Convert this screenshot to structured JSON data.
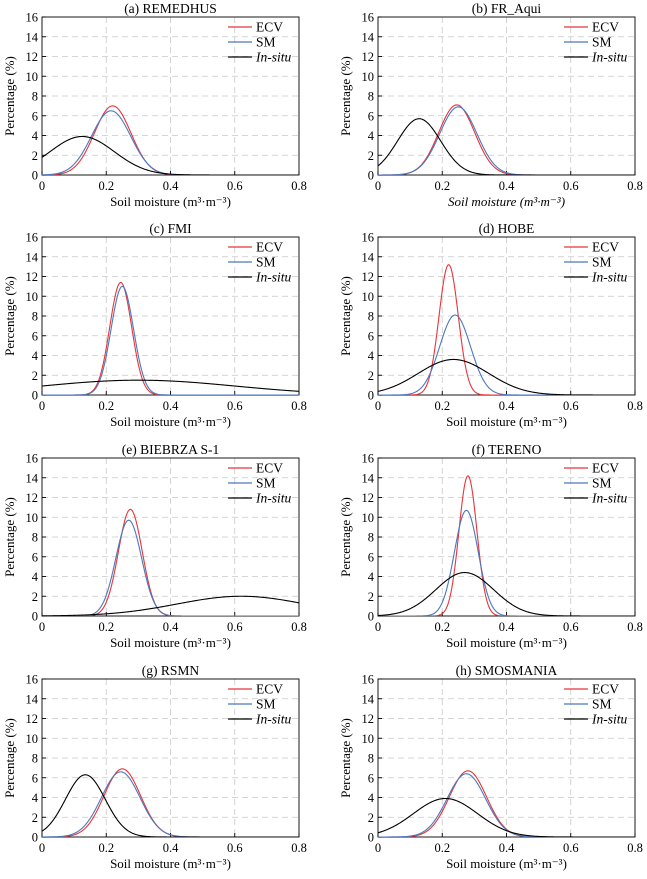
{
  "chart_data": [
    {
      "type": "line",
      "title": "(a) REMEDHUS",
      "xlabel": "Soil moisture (m³·m⁻³)",
      "xlabel_italic": false,
      "ylabel": "Percentage (%)",
      "xlim": [
        0,
        0.8
      ],
      "ylim": [
        0,
        16
      ],
      "xticks": [
        "0",
        "0.2",
        "0.4",
        "0.6",
        "0.8"
      ],
      "yticks": [
        "0",
        "2",
        "4",
        "6",
        "8",
        "10",
        "12",
        "14",
        "16"
      ],
      "grid": true,
      "legend_position": "top-right",
      "series": [
        {
          "name": "ECV",
          "color": "#e8343a",
          "curve": {
            "mean": 0.22,
            "sd": 0.057,
            "peak": 7.0
          }
        },
        {
          "name": "SM",
          "color": "#4a78c0",
          "curve": {
            "mean": 0.215,
            "sd": 0.061,
            "peak": 6.5
          }
        },
        {
          "name": "In-situ",
          "color": "#000000",
          "curve": {
            "mean": 0.125,
            "sd": 0.1,
            "peak": 3.9
          }
        }
      ]
    },
    {
      "type": "line",
      "title": "(b) FR_Aqui",
      "xlabel": "Soil moisture (m³·m⁻³)",
      "xlabel_italic": true,
      "ylabel": "Percentage (%)",
      "xlim": [
        0,
        0.8
      ],
      "ylim": [
        0,
        16
      ],
      "xticks": [
        "0",
        "0.2",
        "0.4",
        "0.6",
        "0.8"
      ],
      "yticks": [
        "0",
        "2",
        "4",
        "6",
        "8",
        "10",
        "12",
        "14",
        "16"
      ],
      "grid": true,
      "legend_position": "top-right",
      "series": [
        {
          "name": "ECV",
          "color": "#e8343a",
          "curve": {
            "mean": 0.245,
            "sd": 0.056,
            "peak": 7.1
          }
        },
        {
          "name": "SM",
          "color": "#4a78c0",
          "curve": {
            "mean": 0.25,
            "sd": 0.058,
            "peak": 6.9
          }
        },
        {
          "name": "In-situ",
          "color": "#000000",
          "curve": {
            "mean": 0.128,
            "sd": 0.067,
            "peak": 5.7
          }
        }
      ]
    },
    {
      "type": "line",
      "title": "(c) FMI",
      "xlabel": "Soil moisture (m³·m⁻³)",
      "xlabel_italic": false,
      "ylabel": "Percentage (%)",
      "xlim": [
        0,
        0.8
      ],
      "ylim": [
        0,
        16
      ],
      "xticks": [
        "0",
        "0.2",
        "0.4",
        "0.6",
        "0.8"
      ],
      "yticks": [
        "0",
        "2",
        "4",
        "6",
        "8",
        "10",
        "12",
        "14",
        "16"
      ],
      "grid": true,
      "legend_position": "top-right",
      "series": [
        {
          "name": "ECV",
          "color": "#e8343a",
          "curve": {
            "mean": 0.245,
            "sd": 0.034,
            "peak": 11.4
          }
        },
        {
          "name": "SM",
          "color": "#4a78c0",
          "curve": {
            "mean": 0.25,
            "sd": 0.035,
            "peak": 11.0
          }
        },
        {
          "name": "In-situ",
          "color": "#000000",
          "curve": {
            "mean": 0.3,
            "sd": 0.3,
            "peak": 1.5
          }
        }
      ]
    },
    {
      "type": "line",
      "title": "(d) HOBE",
      "xlabel": "Soil moisture (m³·m⁻³)",
      "xlabel_italic": false,
      "ylabel": "Percentage (%)",
      "xlim": [
        0,
        0.8
      ],
      "ylim": [
        0,
        16
      ],
      "xticks": [
        "0",
        "0.2",
        "0.4",
        "0.6",
        "0.8"
      ],
      "yticks": [
        "0",
        "2",
        "4",
        "6",
        "8",
        "10",
        "12",
        "14",
        "16"
      ],
      "grid": true,
      "legend_position": "top-right",
      "series": [
        {
          "name": "ECV",
          "color": "#e8343a",
          "curve": {
            "mean": 0.22,
            "sd": 0.03,
            "peak": 13.2
          }
        },
        {
          "name": "SM",
          "color": "#4a78c0",
          "curve": {
            "mean": 0.24,
            "sd": 0.048,
            "peak": 8.1
          }
        },
        {
          "name": "In-situ",
          "color": "#000000",
          "curve": {
            "mean": 0.235,
            "sd": 0.11,
            "peak": 3.6
          }
        }
      ]
    },
    {
      "type": "line",
      "title": "(e) BIEBRZA S-1",
      "xlabel": "Soil moisture (m³·m⁻³)",
      "xlabel_italic": false,
      "ylabel": "Percentage (%)",
      "xlim": [
        0,
        0.8
      ],
      "ylim": [
        0,
        16
      ],
      "xticks": [
        "0",
        "0.2",
        "0.4",
        "0.6",
        "0.8"
      ],
      "yticks": [
        "0",
        "2",
        "4",
        "6",
        "8",
        "10",
        "12",
        "14",
        "16"
      ],
      "grid": true,
      "legend_position": "top-right",
      "series": [
        {
          "name": "ECV",
          "color": "#e8343a",
          "curve": {
            "mean": 0.275,
            "sd": 0.037,
            "peak": 10.8
          }
        },
        {
          "name": "SM",
          "color": "#4a78c0",
          "curve": {
            "mean": 0.27,
            "sd": 0.04,
            "peak": 9.7
          }
        },
        {
          "name": "In-situ",
          "color": "#000000",
          "curve": {
            "mean": 0.62,
            "sd": 0.2,
            "peak": 2.0
          }
        }
      ]
    },
    {
      "type": "line",
      "title": "(f) TERENO",
      "xlabel": "Soil moisture (m³·m⁻³)",
      "xlabel_italic": false,
      "ylabel": "Percentage (%)",
      "xlim": [
        0,
        0.8
      ],
      "ylim": [
        0,
        16
      ],
      "xticks": [
        "0",
        "0.2",
        "0.4",
        "0.6",
        "0.8"
      ],
      "yticks": [
        "0",
        "2",
        "4",
        "6",
        "8",
        "10",
        "12",
        "14",
        "16"
      ],
      "grid": true,
      "legend_position": "top-right",
      "series": [
        {
          "name": "ECV",
          "color": "#e8343a",
          "curve": {
            "mean": 0.28,
            "sd": 0.028,
            "peak": 14.2
          }
        },
        {
          "name": "SM",
          "color": "#4a78c0",
          "curve": {
            "mean": 0.275,
            "sd": 0.037,
            "peak": 10.7
          }
        },
        {
          "name": "In-situ",
          "color": "#000000",
          "curve": {
            "mean": 0.27,
            "sd": 0.09,
            "peak": 4.4
          }
        }
      ]
    },
    {
      "type": "line",
      "title": "(g) RSMN",
      "xlabel": "Soil moisture (m³·m⁻³)",
      "xlabel_italic": false,
      "ylabel": "Percentage (%)",
      "xlim": [
        0,
        0.8
      ],
      "ylim": [
        0,
        16
      ],
      "xticks": [
        "0",
        "0.2",
        "0.4",
        "0.6",
        "0.8"
      ],
      "yticks": [
        "0",
        "2",
        "4",
        "6",
        "8",
        "10",
        "12",
        "14",
        "16"
      ],
      "grid": true,
      "legend_position": "top-right",
      "series": [
        {
          "name": "ECV",
          "color": "#e8343a",
          "curve": {
            "mean": 0.25,
            "sd": 0.057,
            "peak": 6.9
          }
        },
        {
          "name": "SM",
          "color": "#4a78c0",
          "curve": {
            "mean": 0.245,
            "sd": 0.06,
            "peak": 6.6
          }
        },
        {
          "name": "In-situ",
          "color": "#000000",
          "curve": {
            "mean": 0.135,
            "sd": 0.062,
            "peak": 6.3
          }
        }
      ]
    },
    {
      "type": "line",
      "title": "(h) SMOSMANIA",
      "xlabel": "Soil moisture (m³·m⁻³)",
      "xlabel_italic": false,
      "ylabel": "Percentage (%)",
      "xlim": [
        0,
        0.8
      ],
      "ylim": [
        0,
        16
      ],
      "xticks": [
        "0",
        "0.2",
        "0.4",
        "0.6",
        "0.8"
      ],
      "yticks": [
        "0",
        "2",
        "4",
        "6",
        "8",
        "10",
        "12",
        "14",
        "16"
      ],
      "grid": true,
      "legend_position": "top-right",
      "series": [
        {
          "name": "ECV",
          "color": "#e8343a",
          "curve": {
            "mean": 0.28,
            "sd": 0.058,
            "peak": 6.7
          }
        },
        {
          "name": "SM",
          "color": "#4a78c0",
          "curve": {
            "mean": 0.275,
            "sd": 0.06,
            "peak": 6.4
          }
        },
        {
          "name": "In-situ",
          "color": "#000000",
          "curve": {
            "mean": 0.21,
            "sd": 0.1,
            "peak": 3.9
          }
        }
      ]
    }
  ]
}
